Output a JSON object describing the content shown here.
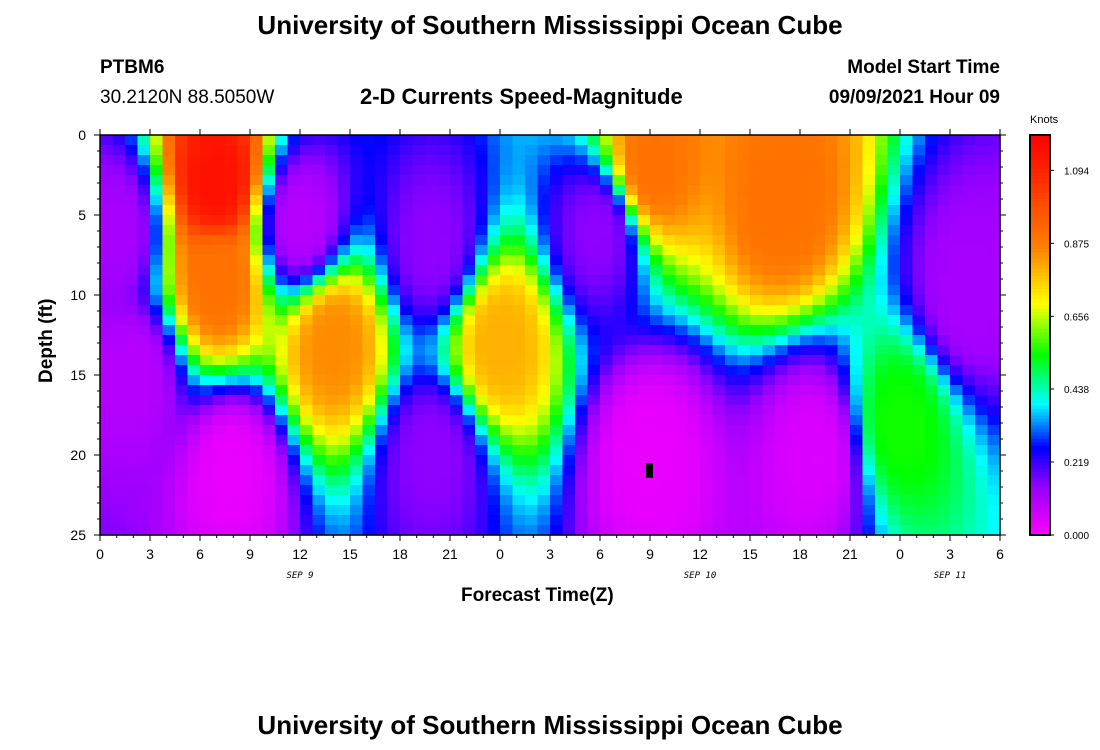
{
  "header": {
    "title": "University of Southern Mississippi Ocean Cube",
    "station": "PTBM6",
    "coords": "30.2120N  88.5050W",
    "chart_title": "2-D Currents Speed-Magnitude",
    "model_start_label": "Model Start Time",
    "model_start_value": "09/09/2021 Hour 09"
  },
  "footer": {
    "title": "University of Southern Mississippi Ocean Cube"
  },
  "chart_data": {
    "type": "heatmap",
    "title": "2-D Currents Speed-Magnitude",
    "xlabel": "Forecast Time(Z)",
    "ylabel": "Depth (ft)",
    "x_range_hours": [
      0,
      54
    ],
    "ylim": [
      0,
      25
    ],
    "y_ticks": [
      "0",
      "5",
      "10",
      "15",
      "20",
      "25"
    ],
    "x_ticks": [
      "0",
      "3",
      "6",
      "9",
      "12",
      "15",
      "18",
      "21",
      "0",
      "3",
      "6",
      "9",
      "12",
      "15",
      "18",
      "21",
      "0",
      "3",
      "6"
    ],
    "date_labels": [
      {
        "text": "SEP 9",
        "hour": 12
      },
      {
        "text": "SEP 10",
        "hour": 36
      },
      {
        "text": "SEP 11",
        "hour": 51
      }
    ],
    "colorbar": {
      "unit": "Knots",
      "min": 0.0,
      "max": 1.2,
      "ticks": [
        "0.000",
        "0.219",
        "0.438",
        "0.656",
        "0.875",
        "1.094"
      ],
      "tick_values": [
        0.0,
        0.219,
        0.438,
        0.656,
        0.875,
        1.094
      ]
    },
    "speed_features_knots": [
      {
        "hour": 1,
        "depth": 6,
        "speed": 0.12
      },
      {
        "hour": 7,
        "depth": 3,
        "speed": 1.15
      },
      {
        "hour": 7,
        "depth": 9,
        "speed": 0.9
      },
      {
        "hour": 2,
        "depth": 15,
        "speed": 0.1
      },
      {
        "hour": 8,
        "depth": 21,
        "speed": 0.03
      },
      {
        "hour": 12,
        "depth": 5.5,
        "speed": 0.1
      },
      {
        "hour": 14,
        "depth": 13,
        "speed": 0.85
      },
      {
        "hour": 20,
        "depth": 7,
        "speed": 0.15
      },
      {
        "hour": 20,
        "depth": 20,
        "speed": 0.15
      },
      {
        "hour": 24,
        "depth": 13,
        "speed": 0.8
      },
      {
        "hour": 30,
        "depth": 6,
        "speed": 0.15
      },
      {
        "hour": 33,
        "depth": 20,
        "speed": 0.03
      },
      {
        "hour": 33,
        "depth": 2,
        "speed": 0.9
      },
      {
        "hour": 41,
        "depth": 4,
        "speed": 0.9
      },
      {
        "hour": 43,
        "depth": 20,
        "speed": 0.05
      },
      {
        "hour": 48,
        "depth": 18,
        "speed": 0.55
      },
      {
        "hour": 52,
        "depth": 10,
        "speed": 0.12
      }
    ]
  }
}
